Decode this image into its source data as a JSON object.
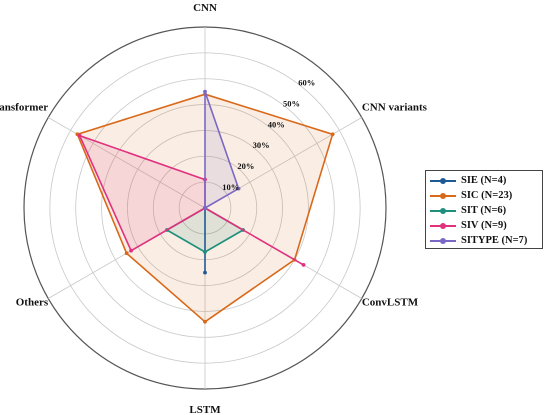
{
  "chart_data": {
    "type": "radar",
    "title": "",
    "axes": [
      "CNN",
      "CNN variants",
      "ConvLSTM",
      "LSTM",
      "Others",
      "Transformer"
    ],
    "radial_range": [
      0,
      70
    ],
    "radial_ticks": [
      10,
      20,
      30,
      40,
      50,
      60
    ],
    "radial_tick_labels": [
      "10%",
      "20%",
      "30%",
      "40%",
      "50%",
      "60%"
    ],
    "grid": true,
    "legend_position": "right",
    "series": [
      {
        "name": "SIE (N=4)",
        "color": "#1f5a96",
        "values": [
          0,
          0,
          0,
          25,
          0,
          0
        ]
      },
      {
        "name": "SIC (N=23)",
        "color": "#d9691a",
        "values": [
          44,
          57,
          40,
          44,
          35,
          57
        ]
      },
      {
        "name": "SIT (N=6)",
        "color": "#1f8f7d",
        "values": [
          0,
          0,
          17,
          17,
          17,
          0
        ]
      },
      {
        "name": "SIV (N=9)",
        "color": "#e0307e",
        "values": [
          11,
          0,
          44,
          0,
          33,
          56
        ]
      },
      {
        "name": "SITYPE (N=7)",
        "color": "#7b68c4",
        "values": [
          45,
          15,
          0,
          0,
          0,
          0
        ]
      }
    ]
  }
}
